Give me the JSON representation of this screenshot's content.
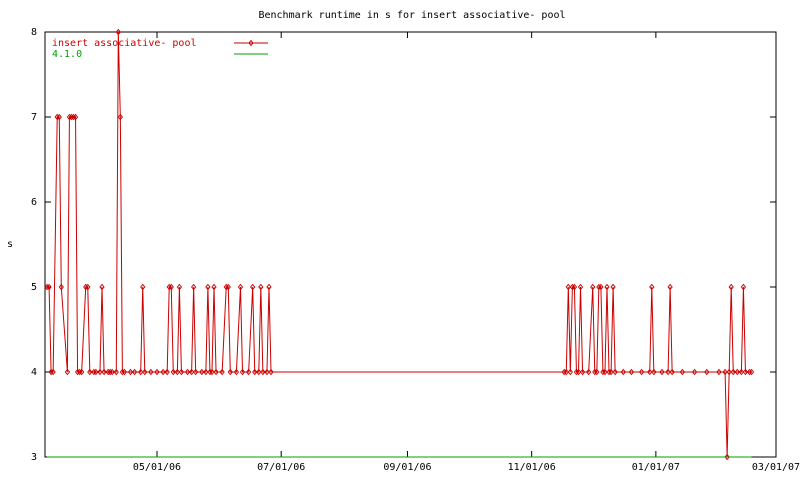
{
  "chart_data": {
    "type": "line",
    "title": "Benchmark runtime in s for insert associative-  pool",
    "y_label": "s",
    "xlim": [
      "2006-03-07",
      "2007-03-01"
    ],
    "xticks": [
      {
        "value": "2006-05-01",
        "label": "05/01/06"
      },
      {
        "value": "2006-07-01",
        "label": "07/01/06"
      },
      {
        "value": "2006-09-01",
        "label": "09/01/06"
      },
      {
        "value": "2006-11-01",
        "label": "11/01/06"
      },
      {
        "value": "2007-01-01",
        "label": "01/01/07"
      },
      {
        "value": "2007-03-01",
        "label": "03/01/07"
      }
    ],
    "ylim": [
      3,
      8
    ],
    "yticks": [
      3,
      4,
      5,
      6,
      7,
      8
    ],
    "legend": "top-left",
    "series": [
      {
        "name": "insert associative-  pool",
        "color": "#cc0000",
        "markers": true,
        "x": [
          "2006-03-08",
          "2006-03-09",
          "2006-03-10",
          "2006-03-11",
          "2006-03-13",
          "2006-03-14",
          "2006-03-15",
          "2006-03-18",
          "2006-03-19",
          "2006-03-20",
          "2006-03-21",
          "2006-03-22",
          "2006-03-23",
          "2006-03-24",
          "2006-03-25",
          "2006-03-27",
          "2006-03-28",
          "2006-03-29",
          "2006-03-31",
          "2006-04-01",
          "2006-04-03",
          "2006-04-04",
          "2006-04-05",
          "2006-04-07",
          "2006-04-08",
          "2006-04-09",
          "2006-04-11",
          "2006-04-12",
          "2006-04-13",
          "2006-04-14",
          "2006-04-15",
          "2006-04-18",
          "2006-04-20",
          "2006-04-23",
          "2006-04-24",
          "2006-04-25",
          "2006-04-28",
          "2006-05-01",
          "2006-05-04",
          "2006-05-06",
          "2006-05-07",
          "2006-05-08",
          "2006-05-09",
          "2006-05-11",
          "2006-05-12",
          "2006-05-13",
          "2006-05-16",
          "2006-05-18",
          "2006-05-19",
          "2006-05-20",
          "2006-05-23",
          "2006-05-25",
          "2006-05-26",
          "2006-05-27",
          "2006-05-28",
          "2006-05-29",
          "2006-05-30",
          "2006-06-02",
          "2006-06-04",
          "2006-06-05",
          "2006-06-06",
          "2006-06-09",
          "2006-06-11",
          "2006-06-12",
          "2006-06-15",
          "2006-06-17",
          "2006-06-18",
          "2006-06-20",
          "2006-06-21",
          "2006-06-22",
          "2006-06-24",
          "2006-06-25",
          "2006-06-26",
          "2006-11-17",
          "2006-11-18",
          "2006-11-19",
          "2006-11-20",
          "2006-11-21",
          "2006-11-22",
          "2006-11-23",
          "2006-11-24",
          "2006-11-25",
          "2006-11-26",
          "2006-11-29",
          "2006-12-01",
          "2006-12-02",
          "2006-12-03",
          "2006-12-04",
          "2006-12-05",
          "2006-12-06",
          "2006-12-07",
          "2006-12-08",
          "2006-12-09",
          "2006-12-10",
          "2006-12-11",
          "2006-12-12",
          "2006-12-16",
          "2006-12-20",
          "2006-12-25",
          "2006-12-29",
          "2006-12-30",
          "2006-12-31",
          "2007-01-04",
          "2007-01-07",
          "2007-01-08",
          "2007-01-09",
          "2007-01-14",
          "2007-01-20",
          "2007-01-26",
          "2007-02-01",
          "2007-02-04",
          "2007-02-05",
          "2007-02-06",
          "2007-02-07",
          "2007-02-08",
          "2007-02-10",
          "2007-02-12",
          "2007-02-13",
          "2007-02-14",
          "2007-02-16",
          "2007-02-17"
        ],
        "values": [
          5,
          5,
          4,
          4,
          7,
          7,
          5,
          4,
          7,
          7,
          7,
          7,
          4,
          4,
          4,
          5,
          5,
          4,
          4,
          4,
          4,
          5,
          4,
          4,
          4,
          4,
          4,
          8,
          7,
          4,
          4,
          4,
          4,
          4,
          5,
          4,
          4,
          4,
          4,
          4,
          5,
          5,
          4,
          4,
          5,
          4,
          4,
          4,
          5,
          4,
          4,
          4,
          5,
          4,
          4,
          5,
          4,
          4,
          5,
          5,
          4,
          4,
          5,
          4,
          4,
          5,
          4,
          4,
          5,
          4,
          4,
          5,
          4,
          4,
          4,
          5,
          4,
          5,
          5,
          4,
          4,
          5,
          4,
          4,
          5,
          4,
          4,
          5,
          5,
          4,
          4,
          5,
          4,
          4,
          5,
          4,
          4,
          4,
          4,
          4,
          5,
          4,
          4,
          4,
          5,
          4,
          4,
          4,
          4,
          4,
          4,
          3,
          4,
          5,
          4,
          4,
          4,
          5,
          4,
          4,
          4
        ]
      },
      {
        "name": "4.1.0",
        "color": "#00a000",
        "markers": false,
        "x": [
          "2006-03-08",
          "2007-02-17"
        ],
        "values": [
          3,
          3
        ]
      }
    ]
  }
}
